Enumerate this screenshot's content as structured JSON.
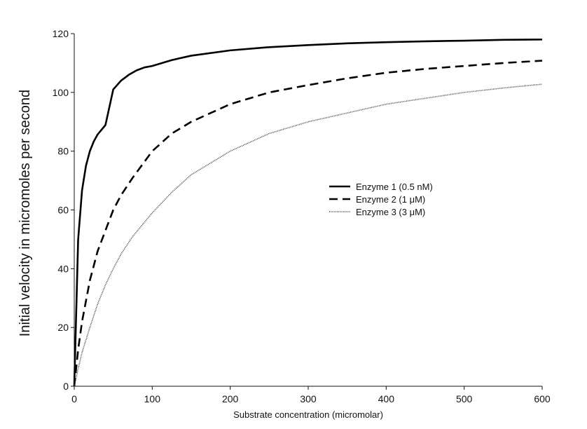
{
  "chart_data": {
    "type": "line",
    "title": "",
    "xlabel": "Substrate concentration (micromolar)",
    "ylabel": "Initial velocity in micromoles per second",
    "xlim": [
      0,
      600
    ],
    "ylim": [
      0,
      120
    ],
    "xticks": [
      "0",
      "100",
      "200",
      "300",
      "400",
      "500",
      "600"
    ],
    "yticks": [
      "0",
      "20",
      "40",
      "60",
      "80",
      "100",
      "120"
    ],
    "grid": false,
    "legend_position": "center-right",
    "series": [
      {
        "name": "Enzyme 1 (0.5 nM)",
        "style": "solid",
        "x": [
          0,
          5,
          10,
          15,
          20,
          25,
          30,
          40,
          50,
          60,
          70,
          80,
          90,
          100,
          125,
          150,
          200,
          250,
          300,
          350,
          400,
          450,
          500,
          550,
          600
        ],
        "y": [
          0,
          50,
          66.7,
          75,
          80,
          83.3,
          85.7,
          88.9,
          101,
          104,
          106,
          107.5,
          108.5,
          109,
          111,
          112.5,
          114.3,
          115.4,
          116.1,
          116.7,
          117.1,
          117.4,
          117.6,
          117.9,
          118
        ]
      },
      {
        "name": "Enzyme 2 (1 μM)",
        "style": "dashed",
        "x": [
          0,
          5,
          10,
          20,
          30,
          40,
          50,
          60,
          75,
          100,
          125,
          150,
          200,
          250,
          300,
          350,
          400,
          450,
          500,
          550,
          600
        ],
        "y": [
          0,
          12.5,
          22,
          36,
          46,
          53,
          60,
          65,
          71,
          80,
          86,
          90,
          96,
          100,
          102.5,
          104.8,
          106.7,
          108,
          109,
          110,
          110.8
        ]
      },
      {
        "name": "Enzyme 3 (3 μM)",
        "style": "dotted",
        "x": [
          0,
          5,
          10,
          20,
          30,
          40,
          50,
          60,
          75,
          100,
          125,
          150,
          200,
          250,
          300,
          350,
          400,
          450,
          500,
          550,
          600
        ],
        "y": [
          0,
          6,
          11.5,
          20,
          28,
          34.5,
          40,
          45,
          51,
          59,
          66,
          72,
          80,
          86,
          90,
          93,
          96,
          98,
          100,
          101.5,
          102.8
        ]
      }
    ]
  }
}
